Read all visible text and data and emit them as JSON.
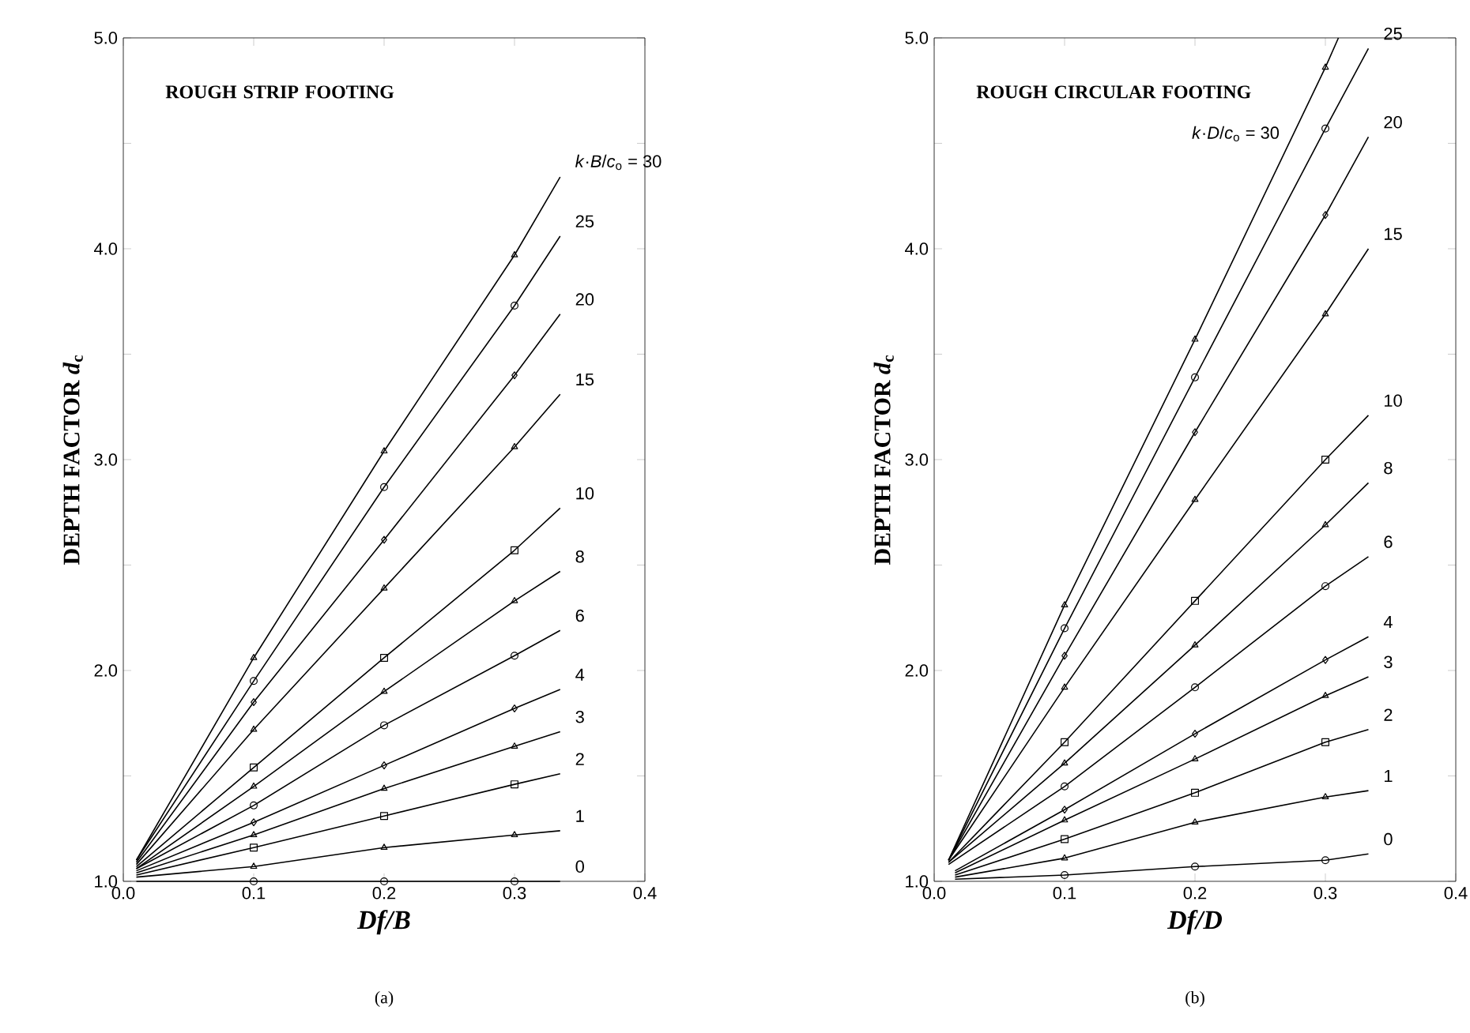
{
  "chart_data": [
    {
      "type": "line",
      "title": "ROUGH STRIP FOOTING",
      "xlabel": "Df/B",
      "ylabel": "DEPTH FACTOR   *d*$_{c}$",
      "annotations": [
        "(a)"
      ],
      "xlim": [
        0,
        0.4
      ],
      "ylim": [
        1,
        5
      ],
      "xticks": [
        {
          "value": 0,
          "label": "0.0"
        },
        {
          "value": 0.1,
          "label": "0.1"
        },
        {
          "value": 0.2,
          "label": "0.2"
        },
        {
          "value": 0.3,
          "label": "0.3"
        },
        {
          "value": 0.4,
          "label": "0.4"
        }
      ],
      "yticks": [
        {
          "value": 1,
          "label": "1.0"
        },
        {
          "value": 1.5,
          "label": null
        },
        {
          "value": 2,
          "label": "2.0"
        },
        {
          "value": 2.5,
          "label": null
        },
        {
          "value": 3,
          "label": "3.0"
        },
        {
          "value": 3.5,
          "label": null
        },
        {
          "value": 4,
          "label": "4.0"
        },
        {
          "value": 4.5,
          "label": null
        },
        {
          "value": 5,
          "label": "5.0"
        }
      ],
      "series": [
        {
          "name": "*k*·*B*/*c*$_{o}$ = 30",
          "color": "#000000",
          "marker": "triangle",
          "x": [
            0.01,
            0.1,
            0.2,
            0.3,
            0.335
          ],
          "values": [
            1.1,
            2.06,
            3.04,
            3.97,
            4.34
          ]
        },
        {
          "name": "25",
          "color": "#000000",
          "marker": "circle",
          "x": [
            0.01,
            0.1,
            0.2,
            0.3,
            0.335
          ],
          "values": [
            1.1,
            1.95,
            2.87,
            3.73,
            4.06
          ]
        },
        {
          "name": "20",
          "color": "#000000",
          "marker": "diamond",
          "x": [
            0.01,
            0.1,
            0.2,
            0.3,
            0.335
          ],
          "values": [
            1.09,
            1.85,
            2.62,
            3.4,
            3.69
          ]
        },
        {
          "name": "15",
          "color": "#000000",
          "marker": "triangle",
          "x": [
            0.01,
            0.1,
            0.2,
            0.3,
            0.335
          ],
          "values": [
            1.08,
            1.72,
            2.39,
            3.06,
            3.31
          ]
        },
        {
          "name": "10",
          "color": "#000000",
          "marker": "square",
          "x": [
            0.01,
            0.1,
            0.2,
            0.3,
            0.335
          ],
          "values": [
            1.07,
            1.54,
            2.06,
            2.57,
            2.77
          ]
        },
        {
          "name": "8",
          "color": "#000000",
          "marker": "triangle",
          "x": [
            0.01,
            0.1,
            0.2,
            0.3,
            0.335
          ],
          "values": [
            1.06,
            1.45,
            1.9,
            2.33,
            2.47
          ]
        },
        {
          "name": "6",
          "color": "#000000",
          "marker": "circle",
          "x": [
            0.01,
            0.1,
            0.2,
            0.3,
            0.335
          ],
          "values": [
            1.06,
            1.36,
            1.74,
            2.07,
            2.19
          ]
        },
        {
          "name": "4",
          "color": "#000000",
          "marker": "diamond",
          "x": [
            0.01,
            0.1,
            0.2,
            0.3,
            0.335
          ],
          "values": [
            1.05,
            1.28,
            1.55,
            1.82,
            1.91
          ]
        },
        {
          "name": "3",
          "color": "#000000",
          "marker": "triangle",
          "x": [
            0.01,
            0.1,
            0.2,
            0.3,
            0.335
          ],
          "values": [
            1.04,
            1.22,
            1.44,
            1.64,
            1.71
          ]
        },
        {
          "name": "2",
          "color": "#000000",
          "marker": "square",
          "x": [
            0.01,
            0.1,
            0.2,
            0.3,
            0.335
          ],
          "values": [
            1.03,
            1.16,
            1.31,
            1.46,
            1.51
          ]
        },
        {
          "name": "1",
          "color": "#000000",
          "marker": "triangle",
          "x": [
            0.01,
            0.1,
            0.2,
            0.3,
            0.335
          ],
          "values": [
            1.02,
            1.07,
            1.16,
            1.22,
            1.24
          ]
        },
        {
          "name": "0",
          "color": "#000000",
          "marker": "circle",
          "x": [
            0.01,
            0.1,
            0.2,
            0.3,
            0.335
          ],
          "values": [
            1.0,
            1.0,
            1.0,
            1.0,
            1.0
          ]
        }
      ]
    },
    {
      "type": "line",
      "title": "ROUGH CIRCULAR FOOTING",
      "xlabel": "Df/D",
      "ylabel": "DEPTH FACTOR   *d*$_{c}$",
      "annotations": [
        "(b)"
      ],
      "xlim": [
        0,
        0.4
      ],
      "ylim": [
        1,
        5
      ],
      "xticks": [
        {
          "value": 0,
          "label": "0.0"
        },
        {
          "value": 0.1,
          "label": "0.1"
        },
        {
          "value": 0.2,
          "label": "0.2"
        },
        {
          "value": 0.3,
          "label": "0.3"
        },
        {
          "value": 0.4,
          "label": "0.4"
        }
      ],
      "yticks": [
        {
          "value": 1,
          "label": "1.0"
        },
        {
          "value": 1.5,
          "label": null
        },
        {
          "value": 2,
          "label": "2.0"
        },
        {
          "value": 2.5,
          "label": null
        },
        {
          "value": 3,
          "label": "3.0"
        },
        {
          "value": 3.5,
          "label": null
        },
        {
          "value": 4,
          "label": "4.0"
        },
        {
          "value": 4.5,
          "label": null
        },
        {
          "value": 5,
          "label": "5.0"
        }
      ],
      "series": [
        {
          "name": "*k*·*D*/*c*$_{o}$ = 30",
          "color": "#000000",
          "marker": "triangle",
          "x": [
            0.011,
            0.1,
            0.2,
            0.3,
            0.31
          ],
          "values": [
            1.1,
            2.31,
            3.57,
            4.86,
            5.0
          ]
        },
        {
          "name": "25",
          "color": "#000000",
          "marker": "circle",
          "x": [
            0.011,
            0.1,
            0.2,
            0.3,
            0.333
          ],
          "values": [
            1.1,
            2.2,
            3.39,
            4.57,
            4.95
          ]
        },
        {
          "name": "20",
          "color": "#000000",
          "marker": "diamond",
          "x": [
            0.011,
            0.1,
            0.2,
            0.3,
            0.333
          ],
          "values": [
            1.1,
            2.07,
            3.13,
            4.16,
            4.53
          ]
        },
        {
          "name": "15",
          "color": "#000000",
          "marker": "triangle",
          "x": [
            0.011,
            0.1,
            0.2,
            0.3,
            0.333
          ],
          "values": [
            1.1,
            1.92,
            2.81,
            3.69,
            4.0
          ]
        },
        {
          "name": "10",
          "color": "#000000",
          "marker": "square",
          "x": [
            0.011,
            0.1,
            0.2,
            0.3,
            0.333
          ],
          "values": [
            1.09,
            1.66,
            2.33,
            3.0,
            3.21
          ]
        },
        {
          "name": "8",
          "color": "#000000",
          "marker": "triangle",
          "x": [
            0.011,
            0.1,
            0.2,
            0.3,
            0.333
          ],
          "values": [
            1.09,
            1.56,
            2.12,
            2.69,
            2.89
          ]
        },
        {
          "name": "6",
          "color": "#000000",
          "marker": "circle",
          "x": [
            0.011,
            0.1,
            0.2,
            0.3,
            0.333
          ],
          "values": [
            1.08,
            1.45,
            1.92,
            2.4,
            2.54
          ]
        },
        {
          "name": "4",
          "color": "#000000",
          "marker": "diamond",
          "x": [
            0.016,
            0.1,
            0.2,
            0.3,
            0.333
          ],
          "values": [
            1.05,
            1.34,
            1.7,
            2.05,
            2.16
          ]
        },
        {
          "name": "3",
          "color": "#000000",
          "marker": "triangle",
          "x": [
            0.016,
            0.1,
            0.2,
            0.3,
            0.333
          ],
          "values": [
            1.04,
            1.29,
            1.58,
            1.88,
            1.97
          ]
        },
        {
          "name": "2",
          "color": "#000000",
          "marker": "square",
          "x": [
            0.016,
            0.1,
            0.2,
            0.3,
            0.333
          ],
          "values": [
            1.03,
            1.2,
            1.42,
            1.66,
            1.72
          ]
        },
        {
          "name": "1",
          "color": "#000000",
          "marker": "triangle",
          "x": [
            0.016,
            0.1,
            0.2,
            0.3,
            0.333
          ],
          "values": [
            1.02,
            1.11,
            1.28,
            1.4,
            1.43
          ]
        },
        {
          "name": "0",
          "color": "#000000",
          "marker": "circle",
          "x": [
            0.016,
            0.1,
            0.2,
            0.3,
            0.333
          ],
          "values": [
            1.01,
            1.03,
            1.07,
            1.1,
            1.13
          ]
        }
      ]
    }
  ]
}
